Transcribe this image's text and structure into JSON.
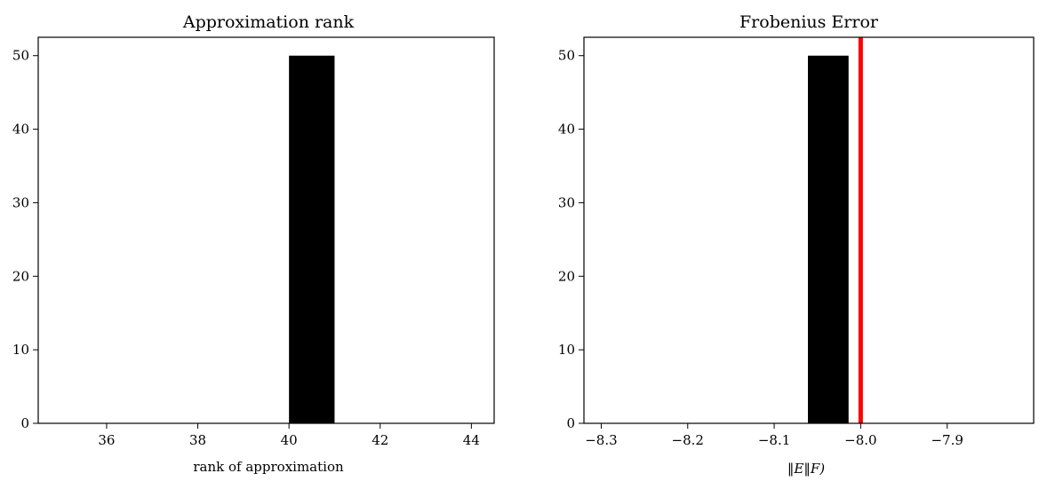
{
  "chart_data": [
    {
      "type": "bar",
      "title": "Approximation rank",
      "xlabel": "rank of approximation",
      "ylabel": "",
      "xlim": [
        34.5,
        44.5
      ],
      "ylim": [
        0,
        52.5
      ],
      "xticks": [
        36,
        38,
        40,
        42,
        44
      ],
      "xtick_labels": [
        "36",
        "38",
        "40",
        "42",
        "44"
      ],
      "yticks": [
        0,
        10,
        20,
        30,
        40,
        50
      ],
      "ytick_labels": [
        "0",
        "10",
        "20",
        "30",
        "40",
        "50"
      ],
      "bars": [
        {
          "x0": 40,
          "x1": 41,
          "value": 50
        }
      ],
      "bar_color": "#000000",
      "grid": false
    },
    {
      "type": "bar",
      "title": "Frobenius Error",
      "xlabel": "‖E‖F)",
      "ylabel": "",
      "xlim": [
        -8.32,
        -7.8
      ],
      "ylim": [
        0,
        52.5
      ],
      "xticks": [
        -8.3,
        -8.2,
        -8.1,
        -8.0,
        -7.9
      ],
      "xtick_labels": [
        "−8.3",
        "−8.2",
        "−8.1",
        "−8.0",
        "−7.9"
      ],
      "yticks": [
        0,
        10,
        20,
        30,
        40,
        50
      ],
      "ytick_labels": [
        "0",
        "10",
        "20",
        "30",
        "40",
        "50"
      ],
      "bars": [
        {
          "x0": -8.061,
          "x1": -8.014,
          "value": 50
        }
      ],
      "bar_color": "#000000",
      "vline": {
        "x": -8.0,
        "color": "#ff0000"
      },
      "grid": false
    }
  ]
}
